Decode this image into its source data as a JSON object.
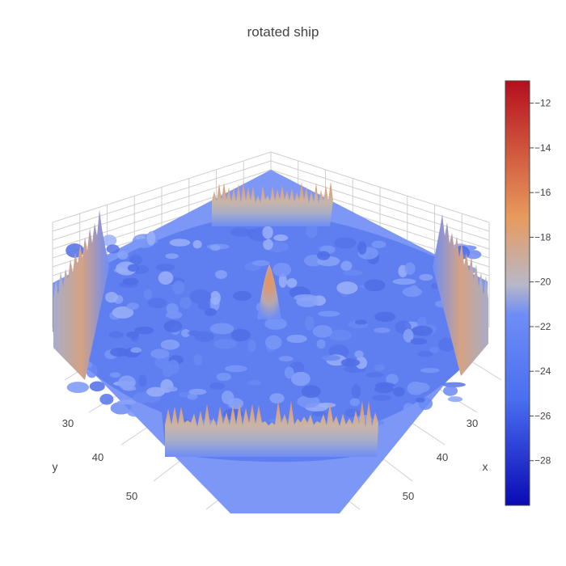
{
  "chart_data": {
    "type": "surface",
    "title": "rotated ship",
    "axes": {
      "x": {
        "label": "x",
        "ticks": [
          "30",
          "40",
          "50"
        ]
      },
      "y": {
        "label": "y",
        "ticks": [
          "30",
          "40",
          "50"
        ]
      }
    },
    "z_range": [
      -30,
      -11
    ],
    "colorbar": {
      "ticks": [
        -12,
        -14,
        -16,
        -18,
        -20,
        -22,
        -24,
        -26,
        -28
      ],
      "tick_labels": [
        "−12",
        "−14",
        "−16",
        "−18",
        "−20",
        "−22",
        "−24",
        "−26",
        "−28"
      ],
      "colorscale": [
        [
          0.0,
          "#0a0ab4"
        ],
        [
          0.25,
          "#4a6ff0"
        ],
        [
          0.45,
          "#6f8df5"
        ],
        [
          0.52,
          "#b8b8c8"
        ],
        [
          0.68,
          "#e89a5c"
        ],
        [
          1.0,
          "#b50f1d"
        ]
      ]
    },
    "features": {
      "background_level": -24,
      "central_peak_level": -17,
      "edge_wall_level": -17
    }
  }
}
